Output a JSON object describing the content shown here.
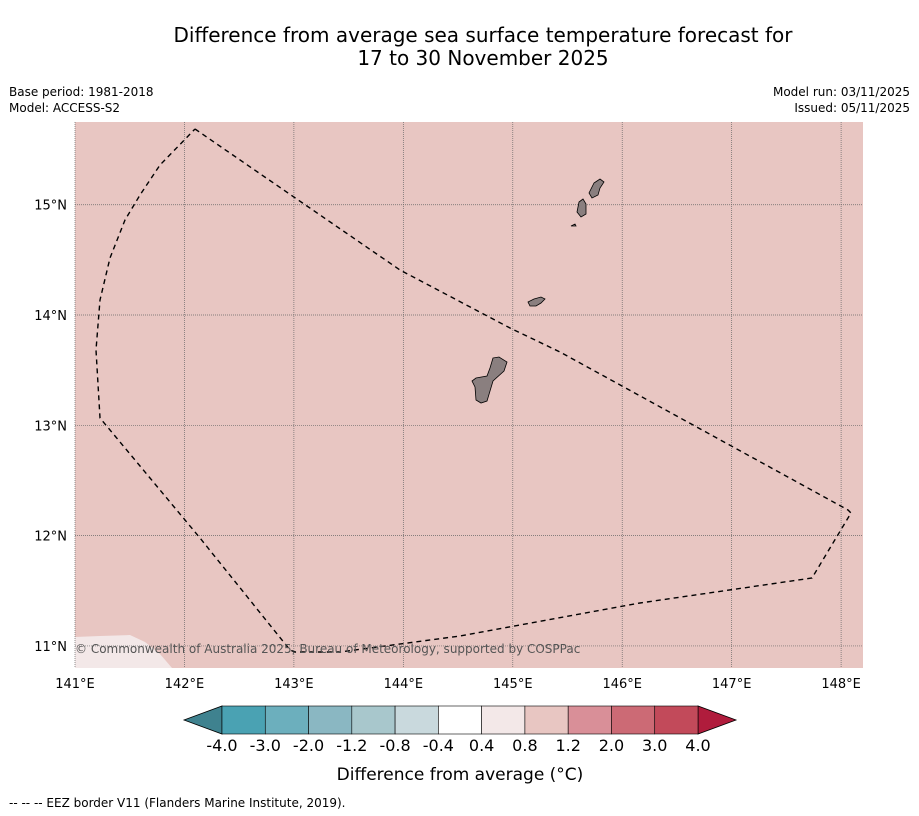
{
  "title": {
    "line1": "Difference from average sea surface temperature forecast for",
    "line2": "17 to 30 November 2025"
  },
  "meta": {
    "base_period": "Base period: 1981-2018",
    "model": "Model: ACCESS-S2",
    "model_run": "Model run: 03/11/2025",
    "issued": "Issued: 05/11/2025"
  },
  "map": {
    "background_color": "#e8c6c2",
    "copyright": "© Commonwealth of Australia 2025, Bureau of Meteorology, supported by COSPPac",
    "lon_labels": [
      "141°E",
      "142°E",
      "143°E",
      "144°E",
      "145°E",
      "146°E",
      "147°E",
      "148°E"
    ],
    "lat_labels": [
      "15°N",
      "14°N",
      "13°N",
      "12°N",
      "11°N"
    ],
    "lon_range": [
      141.0,
      148.2
    ],
    "lat_range": [
      10.8,
      15.75
    ]
  },
  "colorbar": {
    "title": "Difference from average (°C)",
    "tick_labels": [
      "-4.0",
      "-3.0",
      "-2.0",
      "-1.2",
      "-0.8",
      "-0.4",
      "0.4",
      "0.8",
      "1.2",
      "2.0",
      "3.0",
      "4.0"
    ],
    "under_color": "#3f828f",
    "over_color": "#b01c3c",
    "colors": [
      "#4aa2b3",
      "#6cafbd",
      "#8ab7c2",
      "#a8c7cc",
      "#c9d9dd",
      "#ffffff",
      "#f3e8e8",
      "#e8c6c2",
      "#d98f98",
      "#cc6a75",
      "#c24a5a"
    ]
  },
  "footer": {
    "legend": "--  --  -- EEZ border V11 (Flanders Marine Institute, 2019)."
  }
}
